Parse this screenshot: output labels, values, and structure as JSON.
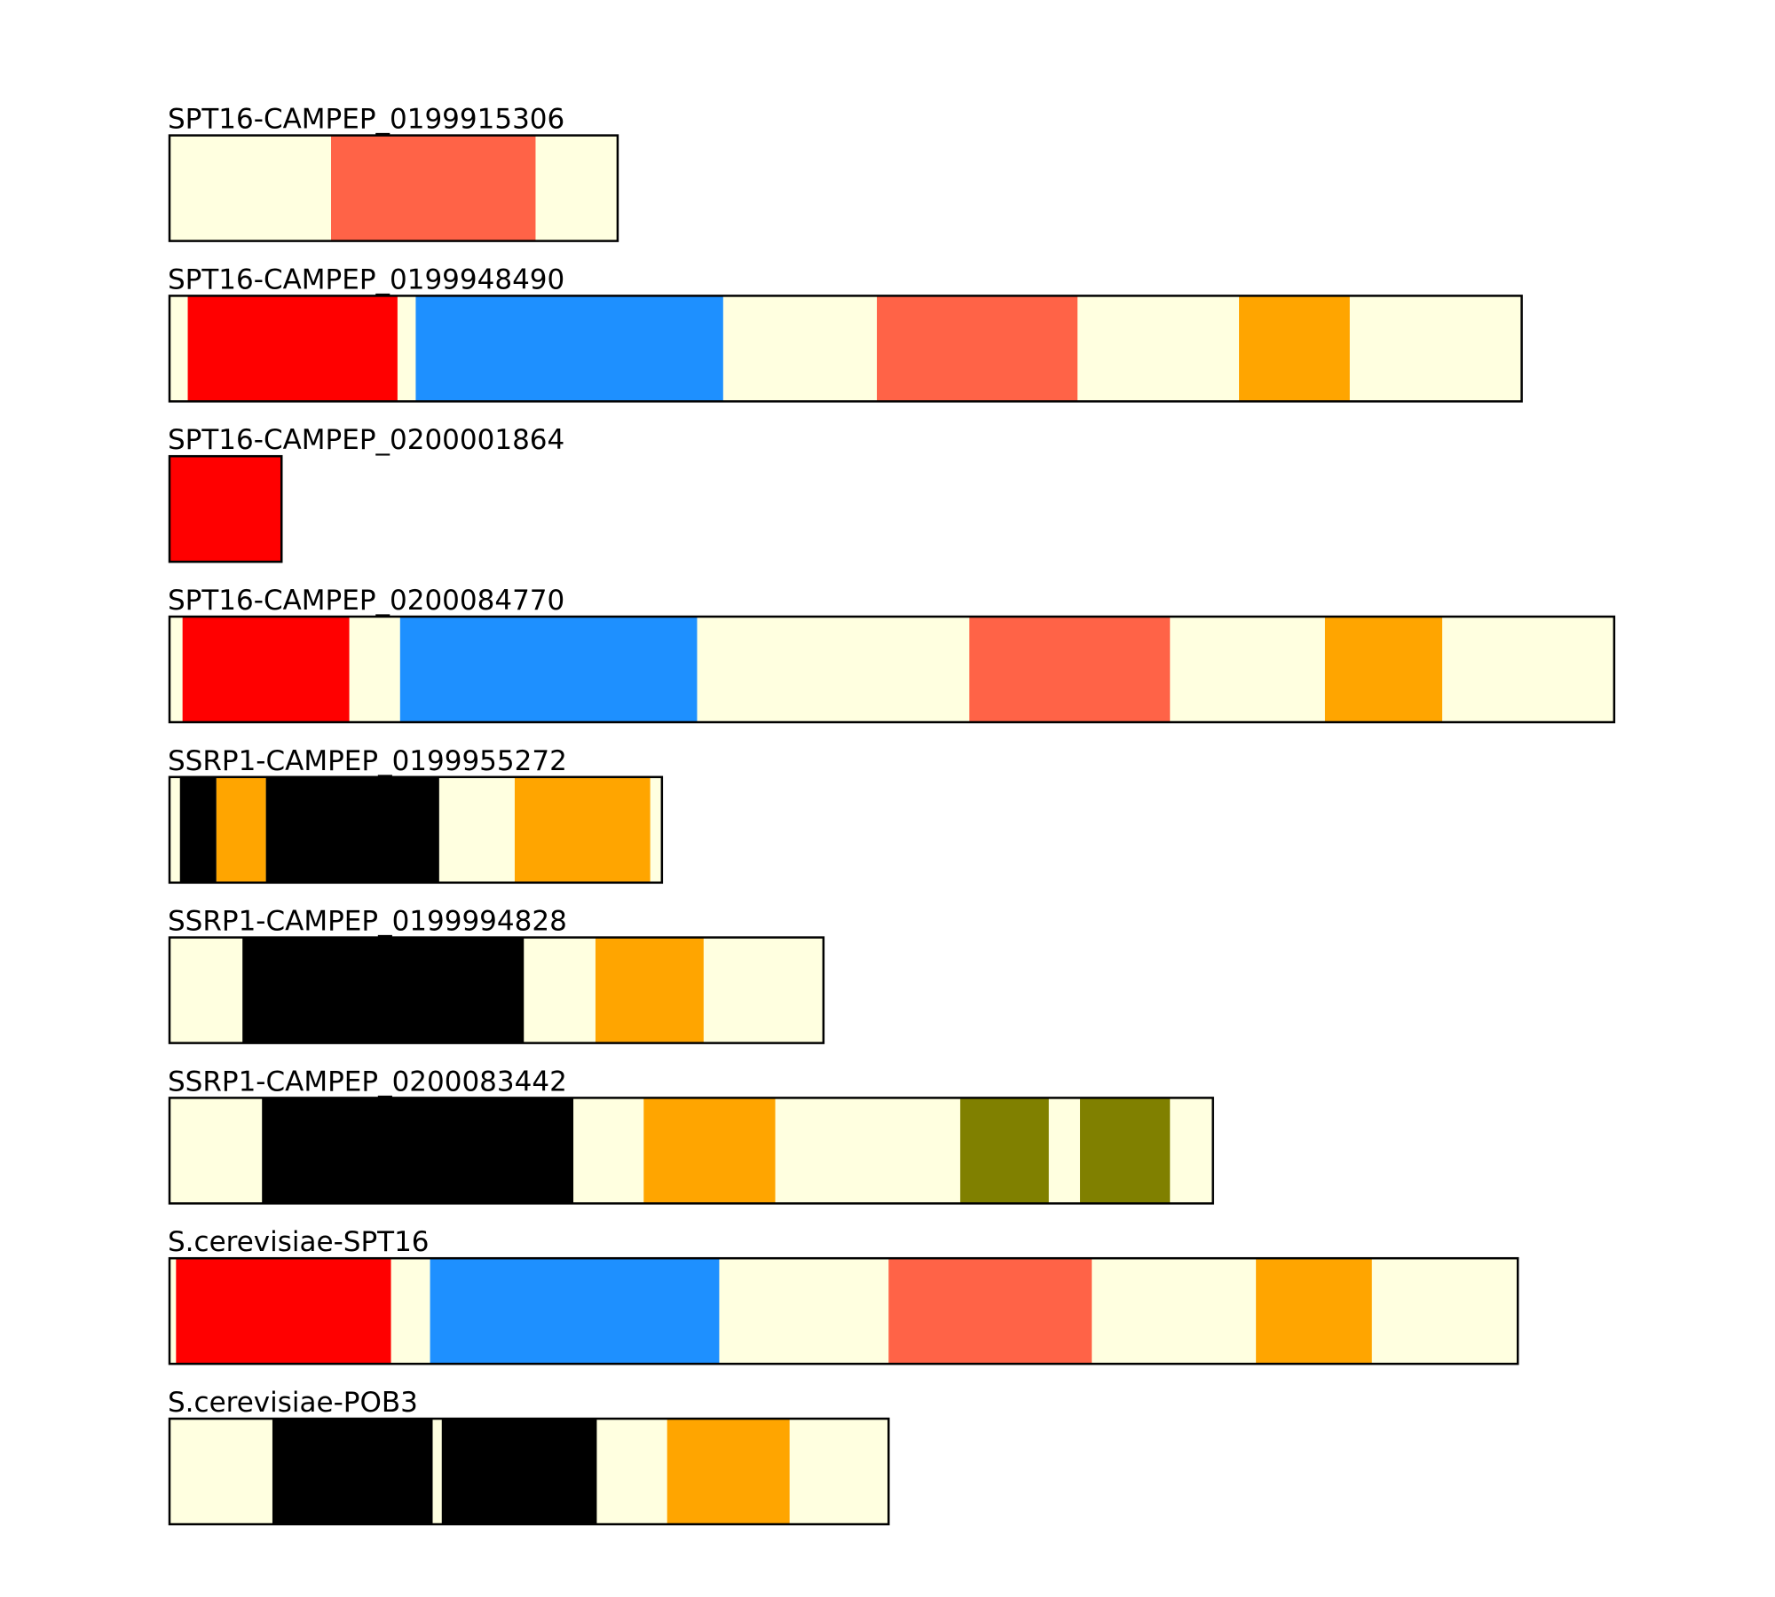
{
  "diagram": {
    "type": "protein-domain-architecture",
    "length_units": "residues (estimated, no axis printed)",
    "colors": {
      "background_domain": "#FFFFE0",
      "red": "#FF0000",
      "blue": "#1E90FF",
      "tomato": "#FF6347",
      "orange": "#FFA500",
      "black": "#000000",
      "olive": "#808000"
    },
    "proteins": [
      {
        "label": "SPT16-CAMPEP_0199915306",
        "length": 344,
        "domains": [
          {
            "start": 124,
            "end": 281,
            "color": "tomato"
          }
        ]
      },
      {
        "label": "SPT16-CAMPEP_0199948490",
        "length": 1038,
        "domains": [
          {
            "start": 14,
            "end": 175,
            "color": "red"
          },
          {
            "start": 189,
            "end": 425,
            "color": "blue"
          },
          {
            "start": 543,
            "end": 697,
            "color": "tomato"
          },
          {
            "start": 821,
            "end": 906,
            "color": "orange"
          }
        ]
      },
      {
        "label": "SPT16-CAMPEP_0200001864",
        "length": 86,
        "domains": [
          {
            "start": 0,
            "end": 86,
            "color": "red"
          }
        ]
      },
      {
        "label": "SPT16-CAMPEP_0200084770",
        "length": 1109,
        "domains": [
          {
            "start": 10,
            "end": 138,
            "color": "red"
          },
          {
            "start": 177,
            "end": 405,
            "color": "blue"
          },
          {
            "start": 614,
            "end": 768,
            "color": "tomato"
          },
          {
            "start": 887,
            "end": 977,
            "color": "orange"
          }
        ]
      },
      {
        "label": "SSRP1-CAMPEP_0199955272",
        "length": 378,
        "domains": [
          {
            "start": 8,
            "end": 36,
            "color": "black"
          },
          {
            "start": 36,
            "end": 74,
            "color": "orange"
          },
          {
            "start": 74,
            "end": 207,
            "color": "black"
          },
          {
            "start": 265,
            "end": 369,
            "color": "orange"
          }
        ]
      },
      {
        "label": "SSRP1-CAMPEP_0199994828",
        "length": 502,
        "domains": [
          {
            "start": 56,
            "end": 272,
            "color": "black"
          },
          {
            "start": 327,
            "end": 410,
            "color": "orange"
          }
        ]
      },
      {
        "label": "SSRP1-CAMPEP_0200083442",
        "length": 801,
        "domains": [
          {
            "start": 71,
            "end": 310,
            "color": "black"
          },
          {
            "start": 364,
            "end": 465,
            "color": "orange"
          },
          {
            "start": 607,
            "end": 675,
            "color": "olive"
          },
          {
            "start": 699,
            "end": 768,
            "color": "olive"
          }
        ]
      },
      {
        "label": "S.cerevisiae-SPT16",
        "length": 1035,
        "domains": [
          {
            "start": 5,
            "end": 170,
            "color": "red"
          },
          {
            "start": 200,
            "end": 422,
            "color": "blue"
          },
          {
            "start": 552,
            "end": 708,
            "color": "tomato"
          },
          {
            "start": 834,
            "end": 923,
            "color": "orange"
          }
        ]
      },
      {
        "label": "S.cerevisiae-POB3",
        "length": 552,
        "domains": [
          {
            "start": 79,
            "end": 202,
            "color": "black"
          },
          {
            "start": 209,
            "end": 328,
            "color": "black"
          },
          {
            "start": 382,
            "end": 476,
            "color": "orange"
          }
        ]
      }
    ]
  }
}
